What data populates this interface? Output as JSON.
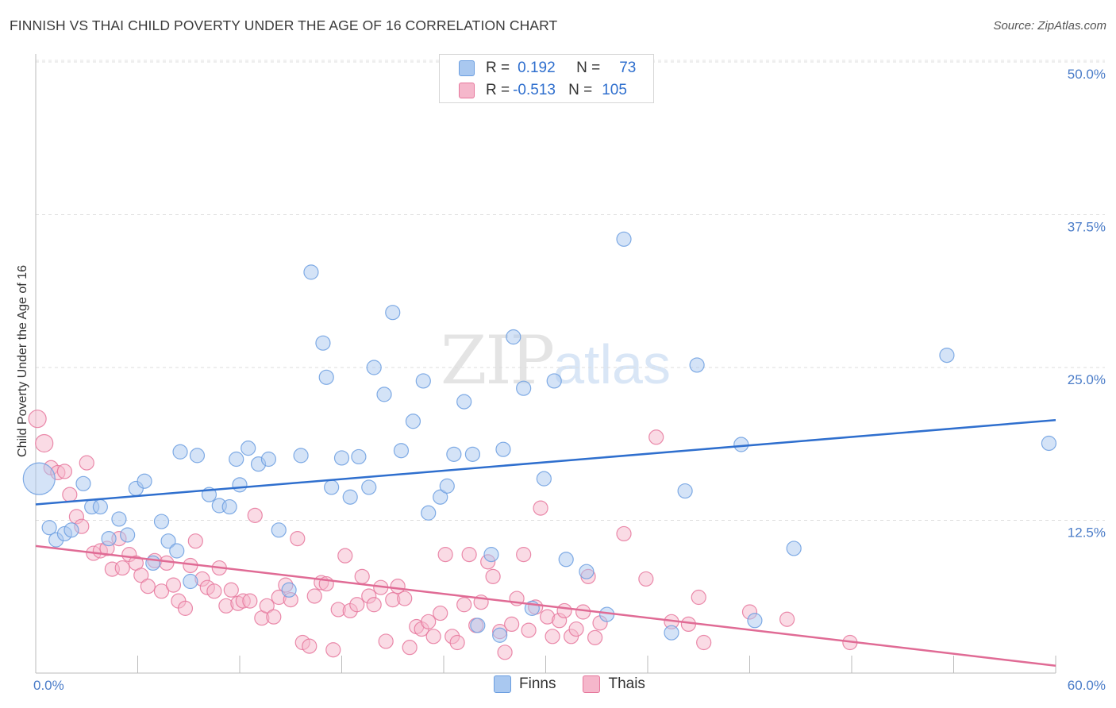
{
  "title": "FINNISH VS THAI CHILD POVERTY UNDER THE AGE OF 16 CORRELATION CHART",
  "source": "Source: ZipAtlas.com",
  "watermark": {
    "zip": "ZIP",
    "atlas": "atlas"
  },
  "legend": {
    "rows": [
      {
        "r_label": "R =",
        "r_value": "0.192",
        "n_label": "N =",
        "n_value": "73",
        "color": "#a9c8f0"
      },
      {
        "r_label": "R =",
        "r_value": "-0.513",
        "n_label": "N =",
        "n_value": "105",
        "color": "#f5b7cb"
      }
    ]
  },
  "bottom_legend": {
    "finns": "Finns",
    "thais": "Thais"
  },
  "chart_data": {
    "type": "scatter",
    "title": "FINNISH VS THAI CHILD POVERTY UNDER THE AGE OF 16 CORRELATION CHART",
    "xlabel": "",
    "ylabel": "Child Poverty Under the Age of 16",
    "xlim": [
      0,
      60
    ],
    "ylim": [
      0,
      50
    ],
    "x_tick_labels": [
      "0.0%",
      "60.0%"
    ],
    "y_ticks": [
      12.5,
      25.0,
      37.5,
      50.0
    ],
    "y_tick_labels": [
      "12.5%",
      "25.0%",
      "37.5%",
      "50.0%"
    ],
    "grid": true,
    "legend_position": "top-center",
    "series": [
      {
        "name": "Finns",
        "color": "#6b9ee0",
        "fill": "#a9c8f0",
        "trend": {
          "x": [
            0,
            60
          ],
          "y": [
            13.8,
            20.7
          ]
        },
        "points": [
          [
            0.2,
            15.9
          ],
          [
            0.8,
            11.9
          ],
          [
            1.2,
            10.9
          ],
          [
            1.7,
            11.4
          ],
          [
            2.1,
            11.7
          ],
          [
            2.8,
            15.5
          ],
          [
            3.3,
            13.6
          ],
          [
            3.8,
            13.6
          ],
          [
            4.3,
            11.0
          ],
          [
            4.9,
            12.6
          ],
          [
            5.4,
            11.3
          ],
          [
            5.9,
            15.1
          ],
          [
            6.4,
            15.7
          ],
          [
            6.9,
            9.0
          ],
          [
            7.4,
            12.4
          ],
          [
            7.8,
            10.8
          ],
          [
            8.3,
            10.0
          ],
          [
            8.5,
            18.1
          ],
          [
            9.1,
            7.5
          ],
          [
            9.5,
            17.8
          ],
          [
            10.2,
            14.6
          ],
          [
            10.8,
            13.7
          ],
          [
            11.4,
            13.6
          ],
          [
            11.8,
            17.5
          ],
          [
            12.0,
            15.4
          ],
          [
            12.5,
            18.4
          ],
          [
            13.1,
            17.1
          ],
          [
            13.7,
            17.5
          ],
          [
            14.3,
            11.7
          ],
          [
            14.9,
            6.8
          ],
          [
            15.6,
            17.8
          ],
          [
            16.2,
            32.8
          ],
          [
            16.9,
            27.0
          ],
          [
            17.1,
            24.2
          ],
          [
            17.4,
            15.2
          ],
          [
            18.0,
            17.6
          ],
          [
            18.5,
            14.4
          ],
          [
            19.0,
            17.7
          ],
          [
            19.6,
            15.2
          ],
          [
            19.9,
            25.0
          ],
          [
            20.5,
            22.8
          ],
          [
            21.0,
            29.5
          ],
          [
            21.5,
            18.2
          ],
          [
            22.2,
            20.6
          ],
          [
            22.8,
            23.9
          ],
          [
            23.1,
            13.1
          ],
          [
            23.8,
            14.4
          ],
          [
            24.2,
            15.3
          ],
          [
            24.6,
            17.9
          ],
          [
            25.2,
            22.2
          ],
          [
            25.7,
            17.9
          ],
          [
            26.0,
            3.9
          ],
          [
            26.8,
            9.7
          ],
          [
            27.3,
            3.1
          ],
          [
            27.5,
            18.3
          ],
          [
            28.1,
            27.5
          ],
          [
            28.7,
            23.3
          ],
          [
            29.2,
            5.3
          ],
          [
            29.9,
            15.9
          ],
          [
            30.5,
            23.9
          ],
          [
            31.2,
            9.3
          ],
          [
            32.4,
            8.3
          ],
          [
            33.6,
            4.8
          ],
          [
            34.0,
            47.3
          ],
          [
            34.6,
            35.5
          ],
          [
            37.4,
            3.3
          ],
          [
            38.2,
            14.9
          ],
          [
            38.9,
            25.2
          ],
          [
            41.5,
            18.7
          ],
          [
            42.3,
            4.3
          ],
          [
            44.6,
            10.2
          ],
          [
            53.6,
            26.0
          ],
          [
            59.6,
            18.8
          ]
        ]
      },
      {
        "name": "Thais",
        "color": "#e6779c",
        "fill": "#f5b7cb",
        "trend": {
          "x": [
            0,
            60
          ],
          "y": [
            10.4,
            0.6
          ]
        },
        "points": [
          [
            0.1,
            20.8
          ],
          [
            0.5,
            18.8
          ],
          [
            0.9,
            16.8
          ],
          [
            1.3,
            16.4
          ],
          [
            1.7,
            16.5
          ],
          [
            2.0,
            14.6
          ],
          [
            2.4,
            12.8
          ],
          [
            2.7,
            12.0
          ],
          [
            3.0,
            17.2
          ],
          [
            3.4,
            9.8
          ],
          [
            3.8,
            10.0
          ],
          [
            4.2,
            10.2
          ],
          [
            4.5,
            8.5
          ],
          [
            4.9,
            11.0
          ],
          [
            5.1,
            8.6
          ],
          [
            5.5,
            9.7
          ],
          [
            5.9,
            9.0
          ],
          [
            6.2,
            8.0
          ],
          [
            6.6,
            7.1
          ],
          [
            7.0,
            9.2
          ],
          [
            7.4,
            6.7
          ],
          [
            7.7,
            9.0
          ],
          [
            8.1,
            7.2
          ],
          [
            8.4,
            5.9
          ],
          [
            8.8,
            5.3
          ],
          [
            9.1,
            8.8
          ],
          [
            9.4,
            10.8
          ],
          [
            9.8,
            7.7
          ],
          [
            10.1,
            7.0
          ],
          [
            10.5,
            6.7
          ],
          [
            10.8,
            8.6
          ],
          [
            11.2,
            5.5
          ],
          [
            11.5,
            6.8
          ],
          [
            11.9,
            5.7
          ],
          [
            12.2,
            5.9
          ],
          [
            12.6,
            5.9
          ],
          [
            12.9,
            12.9
          ],
          [
            13.3,
            4.5
          ],
          [
            13.6,
            5.5
          ],
          [
            14.0,
            4.6
          ],
          [
            14.3,
            6.2
          ],
          [
            14.7,
            7.2
          ],
          [
            15.0,
            6.0
          ],
          [
            15.4,
            11.0
          ],
          [
            15.7,
            2.5
          ],
          [
            16.1,
            2.2
          ],
          [
            16.4,
            6.3
          ],
          [
            16.8,
            7.4
          ],
          [
            17.1,
            7.3
          ],
          [
            17.5,
            1.9
          ],
          [
            17.8,
            5.2
          ],
          [
            18.2,
            9.6
          ],
          [
            18.5,
            5.1
          ],
          [
            18.9,
            5.6
          ],
          [
            19.2,
            7.9
          ],
          [
            19.6,
            6.3
          ],
          [
            19.9,
            5.6
          ],
          [
            20.3,
            7.0
          ],
          [
            20.6,
            2.6
          ],
          [
            21.0,
            6.0
          ],
          [
            21.3,
            7.1
          ],
          [
            21.7,
            6.1
          ],
          [
            22.0,
            2.1
          ],
          [
            22.4,
            3.8
          ],
          [
            22.7,
            3.6
          ],
          [
            23.1,
            4.2
          ],
          [
            23.4,
            3.0
          ],
          [
            23.8,
            4.9
          ],
          [
            24.1,
            9.7
          ],
          [
            24.5,
            3.0
          ],
          [
            24.8,
            2.5
          ],
          [
            25.2,
            5.6
          ],
          [
            25.5,
            9.7
          ],
          [
            25.9,
            3.9
          ],
          [
            26.2,
            5.8
          ],
          [
            26.6,
            9.1
          ],
          [
            26.9,
            7.9
          ],
          [
            27.3,
            3.4
          ],
          [
            27.6,
            1.7
          ],
          [
            28.0,
            4.0
          ],
          [
            28.3,
            6.1
          ],
          [
            28.7,
            9.7
          ],
          [
            29.0,
            3.5
          ],
          [
            29.4,
            5.4
          ],
          [
            29.7,
            13.5
          ],
          [
            30.1,
            4.6
          ],
          [
            30.4,
            3.0
          ],
          [
            30.8,
            4.3
          ],
          [
            31.1,
            5.1
          ],
          [
            31.5,
            3.0
          ],
          [
            31.8,
            3.6
          ],
          [
            32.2,
            5.0
          ],
          [
            32.5,
            7.9
          ],
          [
            32.9,
            2.9
          ],
          [
            33.2,
            4.1
          ],
          [
            34.6,
            11.4
          ],
          [
            35.9,
            7.7
          ],
          [
            36.5,
            19.3
          ],
          [
            37.4,
            4.2
          ],
          [
            38.4,
            4.0
          ],
          [
            39.0,
            6.2
          ],
          [
            39.3,
            2.5
          ],
          [
            42.0,
            5.0
          ],
          [
            44.2,
            4.4
          ],
          [
            47.9,
            2.5
          ]
        ]
      }
    ]
  }
}
